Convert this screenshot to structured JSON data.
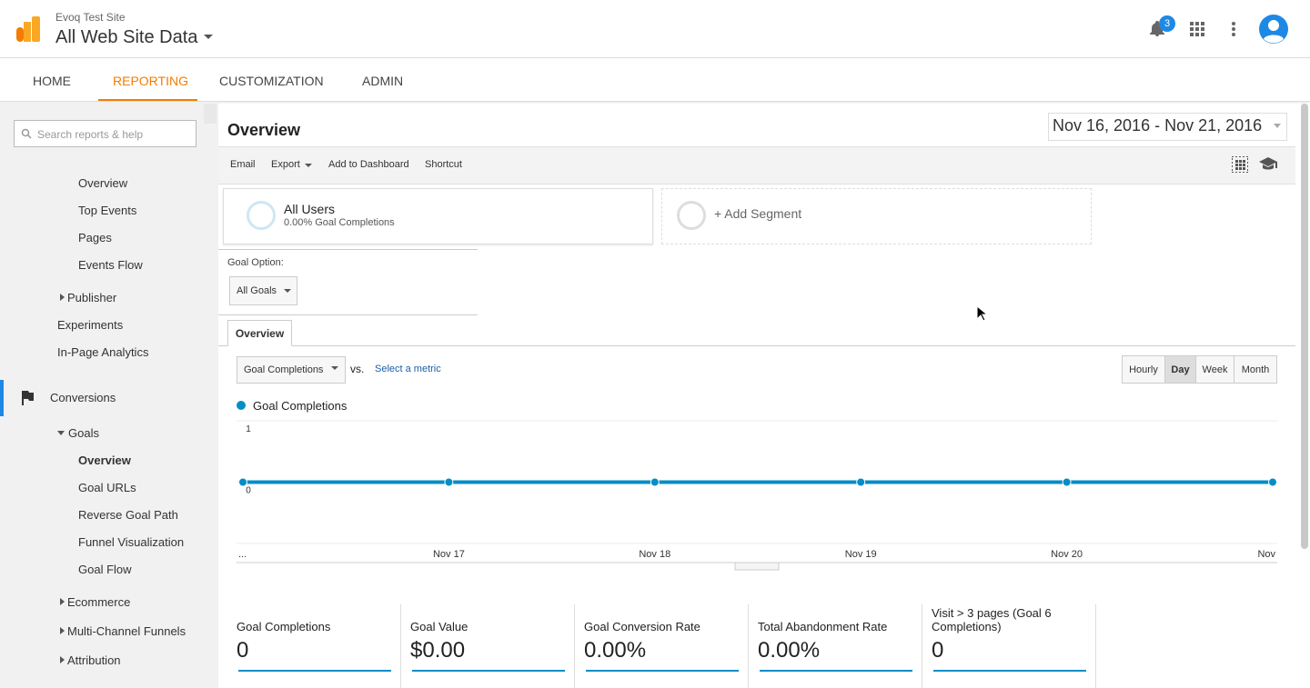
{
  "header": {
    "site": "Evoq Test Site",
    "view": "All Web Site Data",
    "notifications": 3
  },
  "tabs": [
    "HOME",
    "REPORTING",
    "CUSTOMIZATION",
    "ADMIN"
  ],
  "sidebar": {
    "search": "Search reports & help",
    "items": [
      "Overview",
      "Top Events",
      "Pages",
      "Events Flow",
      "Publisher",
      "Experiments",
      "In-Page Analytics",
      "Conversions",
      "Goals",
      "Overview",
      "Goal URLs",
      "Reverse Goal Path",
      "Funnel Visualization",
      "Goal Flow",
      "Ecommerce",
      "Multi-Channel Funnels",
      "Attribution"
    ]
  },
  "report": {
    "title": "Overview",
    "date_range": "Nov 16, 2016 - Nov 21, 2016",
    "toolbar": [
      "Email",
      "Export",
      "Add to Dashboard",
      "Shortcut"
    ],
    "segment": {
      "name": "All Users",
      "detail": "0.00% Goal Completions",
      "add": "+ Add Segment"
    },
    "goal_option_label": "Goal Option:",
    "goal_option": "All Goals",
    "tab": "Overview",
    "metric": "Goal Completions",
    "vs": "vs.",
    "select_metric": "Select a metric",
    "granularity": [
      "Hourly",
      "Day",
      "Week",
      "Month"
    ],
    "metrics": [
      {
        "label": "Goal Completions",
        "value": "0"
      },
      {
        "label": "Goal Value",
        "value": "$0.00"
      },
      {
        "label": "Goal Conversion Rate",
        "value": "0.00%"
      },
      {
        "label": "Total Abandonment Rate",
        "value": "0.00%"
      },
      {
        "label": "Visit > 3 pages (Goal 6 Completions)",
        "value": "0"
      }
    ]
  },
  "chart_data": {
    "type": "line",
    "categories": [
      "...",
      "Nov 17",
      "Nov 18",
      "Nov 19",
      "Nov 20",
      "Nov"
    ],
    "series": [
      {
        "name": "Goal Completions",
        "color": "#058dc7",
        "values": [
          0,
          0,
          0,
          0,
          0,
          0
        ]
      }
    ],
    "ylim": [
      -1,
      1
    ],
    "yticks": [
      0,
      1
    ],
    "grid": true
  }
}
